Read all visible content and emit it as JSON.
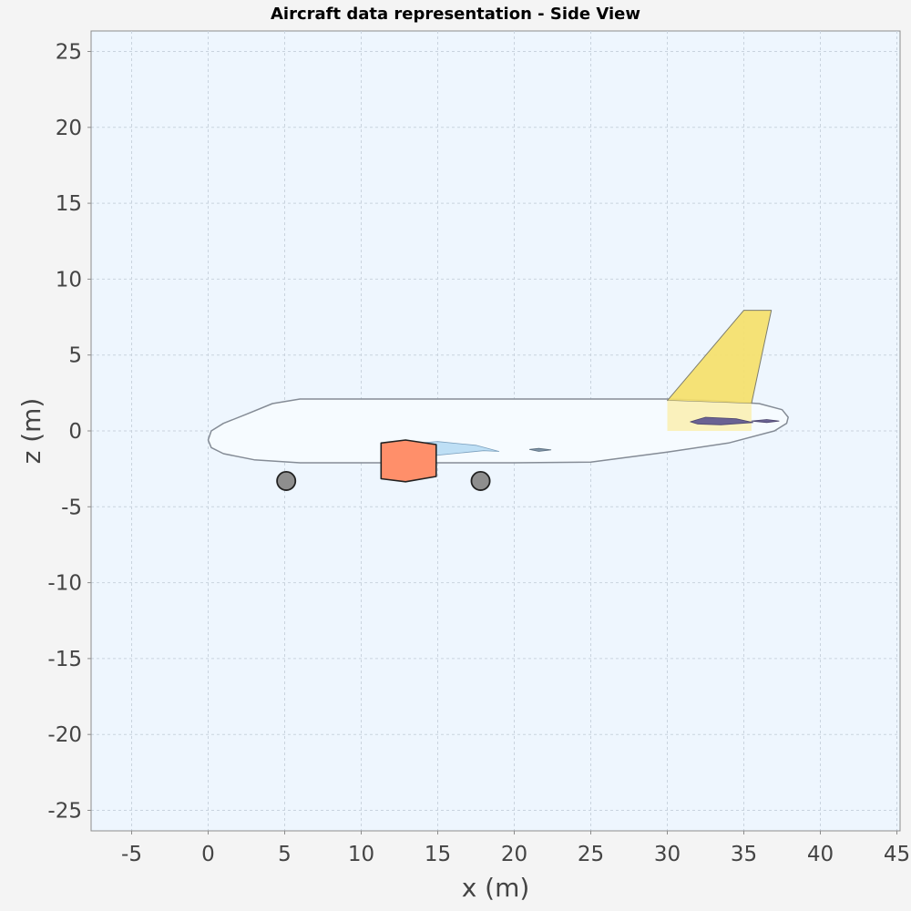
{
  "chart_data": {
    "type": "scatter",
    "title": "Aircraft data representation - Side View",
    "xlabel": "x (m)",
    "ylabel": "z (m)",
    "xlim": [
      -7.5,
      45
    ],
    "ylim": [
      -26,
      26
    ],
    "xticks": [
      -5,
      0,
      5,
      10,
      15,
      20,
      25,
      30,
      35,
      40,
      45
    ],
    "yticks": [
      25,
      20,
      15,
      10,
      5,
      0,
      -5,
      -10,
      -15,
      -20,
      -25
    ],
    "grid": true,
    "legend": "none",
    "colors": {
      "plot_bg": "#eef6fe",
      "fuselage_fill": "#f6fbff",
      "fuselage_stroke": "#858c96",
      "wing_fill": "#b8dcf4",
      "htail_fill": "#6a6293",
      "vtail_fill": "#f5e06a",
      "vtail_root_fill": "#faf0b8",
      "engine_fill": "#ff8f6a",
      "gear_fill": "#8e8e8e"
    },
    "components": [
      {
        "name": "fuselage",
        "points": [
          [
            0,
            -0.6
          ],
          [
            0.2,
            0
          ],
          [
            1,
            0.5
          ],
          [
            2.5,
            1.1
          ],
          [
            4.2,
            1.8
          ],
          [
            6,
            2.1
          ],
          [
            20,
            2.1
          ],
          [
            30,
            2.1
          ],
          [
            33,
            2
          ],
          [
            36,
            1.8
          ],
          [
            37.5,
            1.4
          ],
          [
            37.9,
            0.9
          ],
          [
            37.8,
            0.5
          ],
          [
            37,
            0
          ],
          [
            34,
            -0.8
          ],
          [
            30,
            -1.4
          ],
          [
            25,
            -2.05
          ],
          [
            20,
            -2.1
          ],
          [
            6,
            -2.1
          ],
          [
            3,
            -1.9
          ],
          [
            1,
            -1.5
          ],
          [
            0.2,
            -1.1
          ]
        ]
      },
      {
        "name": "wing",
        "points": [
          [
            11.8,
            -1.2
          ],
          [
            12.5,
            -0.9
          ],
          [
            15,
            -0.7
          ],
          [
            17.5,
            -0.95
          ],
          [
            19,
            -1.35
          ],
          [
            18,
            -1.3
          ],
          [
            16,
            -1.5
          ],
          [
            14,
            -1.7
          ],
          [
            12.3,
            -1.55
          ],
          [
            11.8,
            -1.4
          ]
        ]
      },
      {
        "name": "vertical-tail",
        "points": [
          [
            30,
            2
          ],
          [
            35,
            7.95
          ],
          [
            36.8,
            7.95
          ],
          [
            35.5,
            1.8
          ]
        ]
      },
      {
        "name": "vertical-tail-root",
        "points": [
          [
            30,
            2
          ],
          [
            35.5,
            1.8
          ],
          [
            35.5,
            0
          ],
          [
            30,
            0
          ]
        ]
      },
      {
        "name": "horizontal-tail",
        "points": [
          [
            31.5,
            0.6
          ],
          [
            32.5,
            0.9
          ],
          [
            34.5,
            0.8
          ],
          [
            35.6,
            0.55
          ],
          [
            33.5,
            0.4
          ],
          [
            32,
            0.45
          ]
        ]
      },
      {
        "name": "horizontal-tail-small",
        "points": [
          [
            35.5,
            0.65
          ],
          [
            36.5,
            0.75
          ],
          [
            37.3,
            0.65
          ],
          [
            36.5,
            0.55
          ]
        ]
      },
      {
        "name": "canard",
        "points": [
          [
            21,
            -1.22
          ],
          [
            21.6,
            -1.15
          ],
          [
            22.4,
            -1.25
          ],
          [
            21.6,
            -1.35
          ]
        ]
      },
      {
        "name": "engine",
        "points": [
          [
            11.3,
            -0.8
          ],
          [
            12.9,
            -0.6
          ],
          [
            14.9,
            -0.9
          ],
          [
            14.9,
            -3.0
          ],
          [
            12.9,
            -3.35
          ],
          [
            11.3,
            -3.15
          ]
        ]
      }
    ],
    "landing_gear": [
      {
        "name": "nose-gear",
        "x": 5.1,
        "z": -3.3,
        "r": 0.6
      },
      {
        "name": "main-gear",
        "x": 17.8,
        "z": -3.3,
        "r": 0.6
      }
    ]
  }
}
